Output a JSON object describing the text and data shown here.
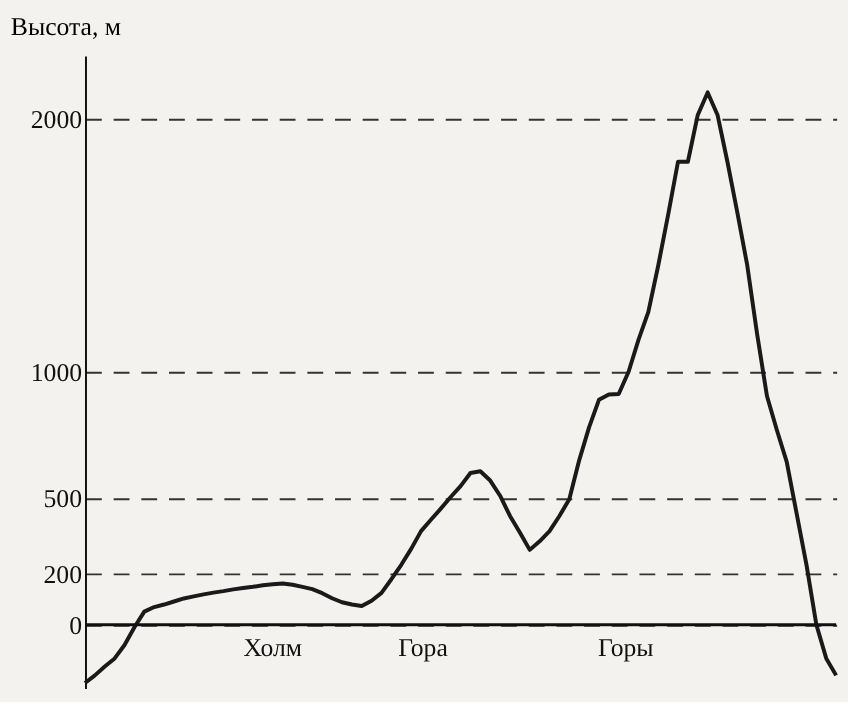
{
  "chart_data": {
    "type": "line",
    "ylabel": "Высота, м",
    "categories": [
      null,
      null,
      null,
      null,
      null,
      null,
      null,
      null,
      null,
      null,
      null,
      null,
      null,
      null,
      null,
      null,
      null,
      null,
      null,
      null,
      null,
      null,
      null,
      null,
      null,
      null,
      null,
      null,
      null,
      null,
      null,
      null,
      null,
      null,
      null,
      null,
      null,
      null,
      null,
      null,
      null,
      null,
      null,
      null,
      null,
      null,
      null,
      null,
      null,
      null,
      null,
      null,
      null,
      null,
      null,
      null,
      null,
      null,
      null,
      null,
      null,
      null,
      null,
      null,
      null,
      null,
      null,
      null,
      null,
      null,
      null,
      null,
      null,
      null,
      null,
      null,
      null
    ],
    "series": [
      {
        "color": "#1a1a1a",
        "values": [
          -230,
          -200,
          -165,
          -133,
          -80,
          -10,
          52,
          70,
          80,
          92,
          104,
          112,
          120,
          127,
          133,
          140,
          145,
          150,
          156,
          160,
          163,
          158,
          150,
          141,
          125,
          105,
          89,
          80,
          74,
          95,
          126,
          180,
          237,
          300,
          370,
          415,
          459,
          505,
          548,
          600,
          607,
          570,
          510,
          430,
          365,
          296,
          330,
          370,
          430,
          496,
          650,
          780,
          889,
          910,
          912,
          1000,
          1126,
          1237,
          1420,
          1620,
          1830,
          1830,
          2015,
          2104,
          2015,
          1830,
          1630,
          1422,
          1150,
          904,
          770,
          644,
          440,
          237,
          0,
          -133,
          -200
        ]
      }
    ],
    "ylim": [
      -250,
      2250
    ],
    "yticks": [
      0,
      200,
      500,
      1000,
      2000
    ],
    "grid": "y",
    "ref_lines": [
      {
        "axis": "y",
        "value": 0,
        "line_style": "solid"
      }
    ],
    "annotations": [
      "Холм",
      "Гора",
      "Горы"
    ],
    "tick_labels": "y",
    "marker": "none",
    "line_style": "solid"
  }
}
